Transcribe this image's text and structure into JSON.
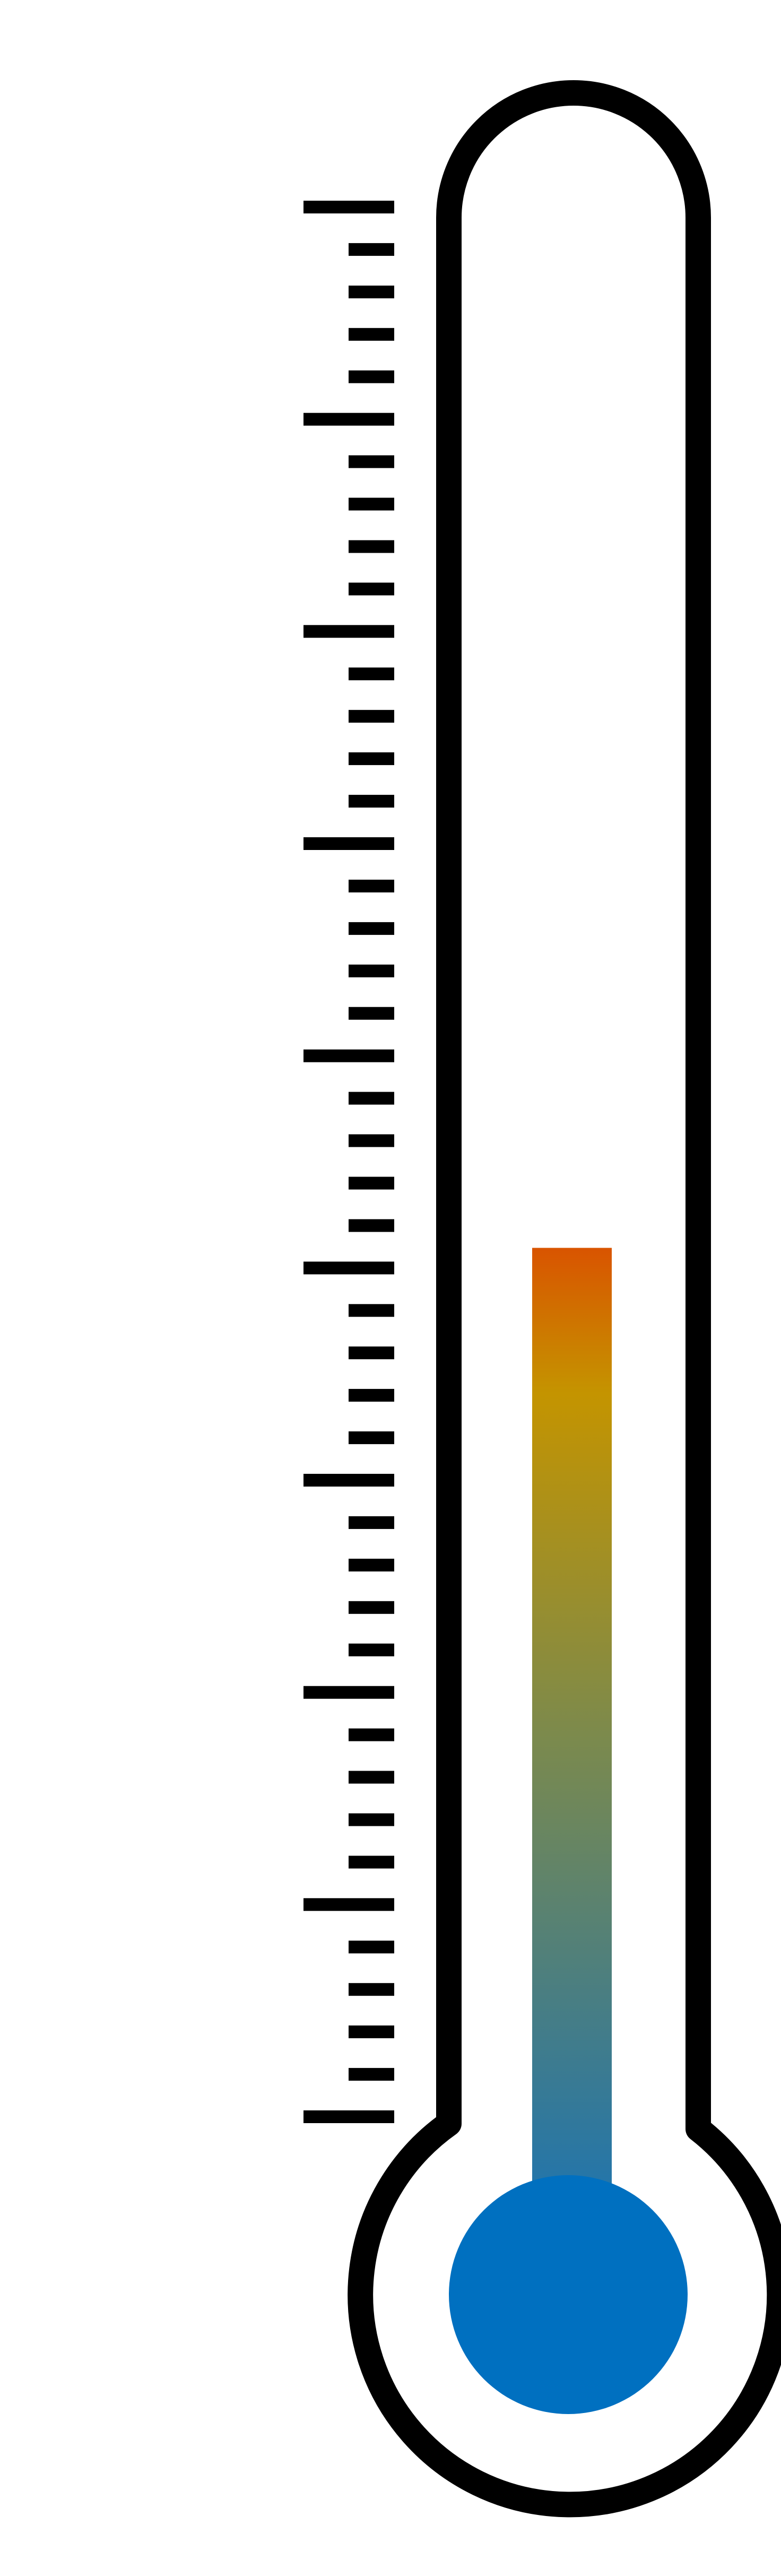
{
  "thermometer": {
    "fill_level": 0.455,
    "scale_divisions": 9,
    "minor_ticks_per_division": 4,
    "colors": {
      "outline": "#000000",
      "background": "#ffffff",
      "gradient_top": "#d95400",
      "gradient_upper": "#c49400",
      "gradient_middle": "#7c8a4c",
      "gradient_bottom": "#1e74b0",
      "bulb": "#0070c0"
    }
  }
}
